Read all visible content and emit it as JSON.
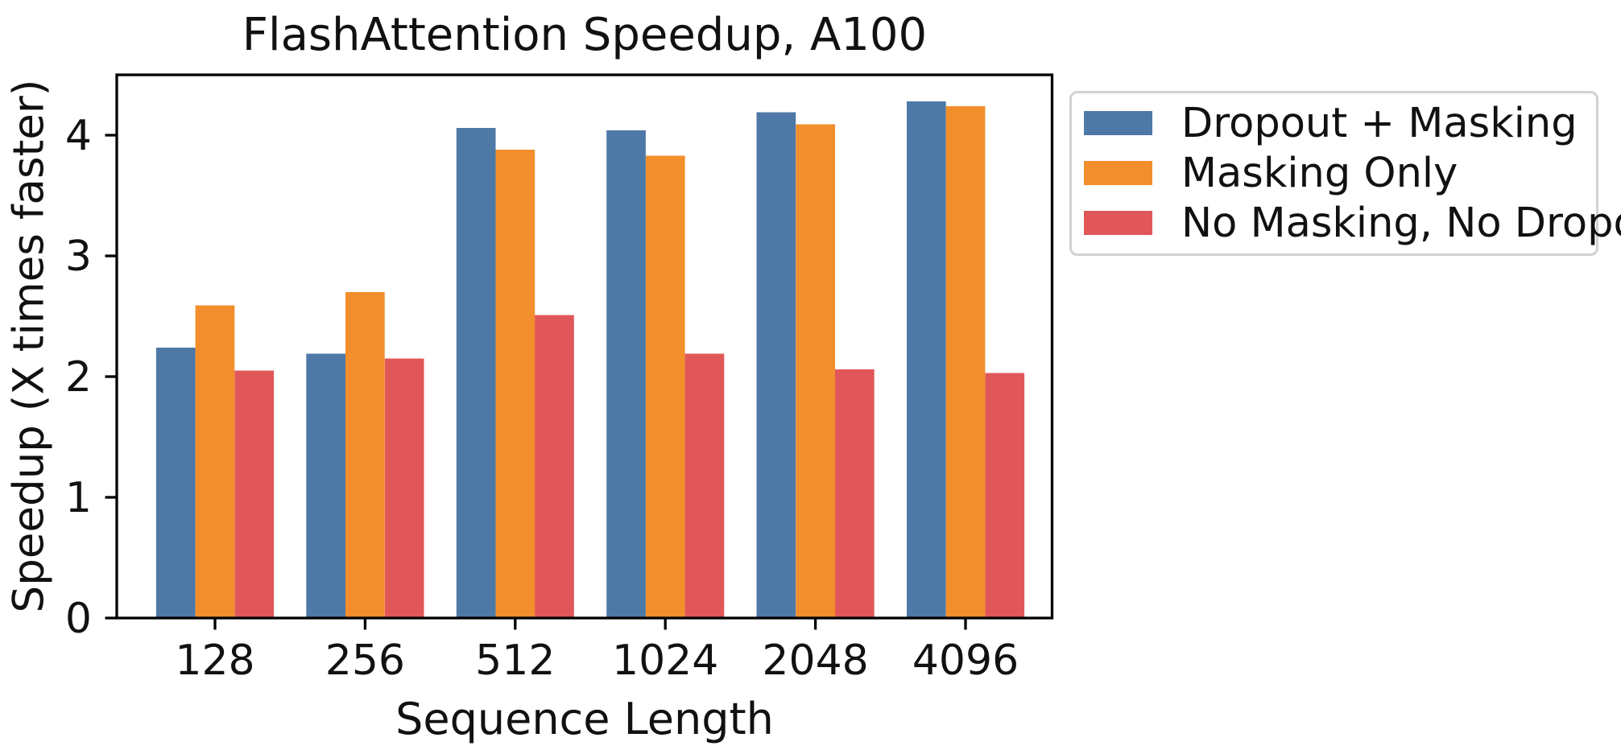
{
  "title": "FlashAttention Speedup, A100",
  "chart_data": {
    "type": "bar",
    "title": "FlashAttention Speedup, A100",
    "xlabel": "Sequence Length",
    "ylabel": "Speedup (X times faster)",
    "categories": [
      "128",
      "256",
      "512",
      "1024",
      "2048",
      "4096"
    ],
    "series": [
      {
        "name": "Dropout + Masking",
        "color": "#4E79A7",
        "values": [
          2.24,
          2.19,
          4.06,
          4.04,
          4.19,
          4.28
        ]
      },
      {
        "name": "Masking Only",
        "color": "#F28E2B",
        "values": [
          2.59,
          2.7,
          3.88,
          3.83,
          4.09,
          4.24
        ]
      },
      {
        "name": "No Masking, No Dropout",
        "color": "#E15759",
        "values": [
          2.05,
          2.15,
          2.51,
          2.19,
          2.06,
          2.03
        ]
      }
    ],
    "ylim": [
      0,
      4.5
    ],
    "yticks": [
      0,
      1,
      2,
      3,
      4
    ],
    "grid": false,
    "legend_position": "outside upper right",
    "axis_color": "#000000",
    "text_color": "#111111"
  }
}
